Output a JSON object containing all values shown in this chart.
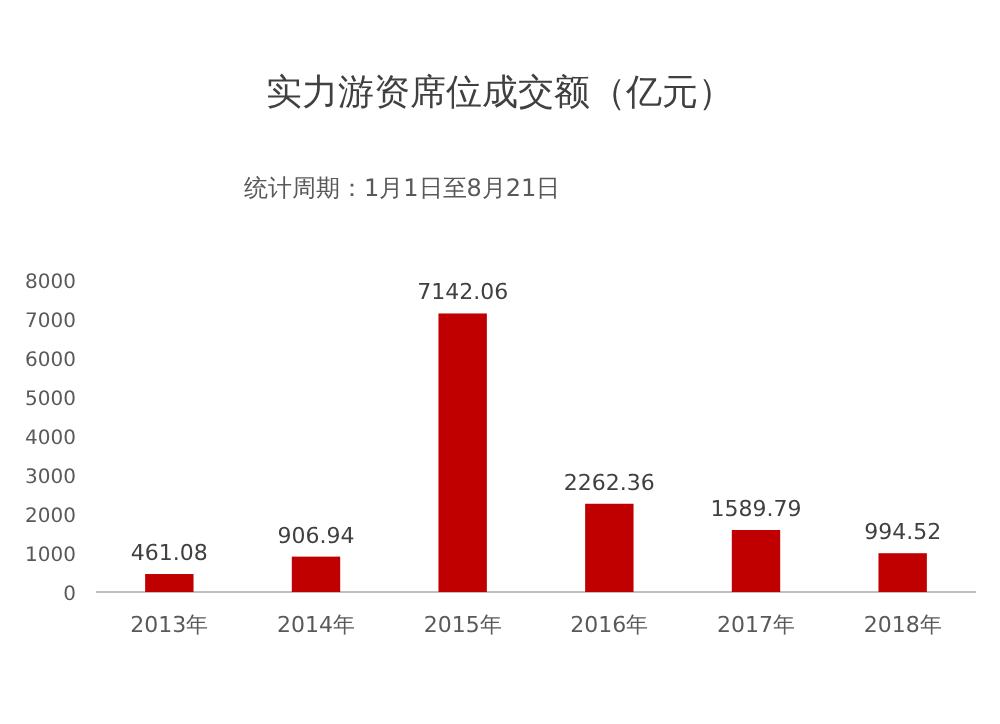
{
  "chart_data": {
    "type": "bar",
    "title": "实力游资席位成交额（亿元）",
    "annotations": [
      "统计周期：1月1日至8月21日"
    ],
    "categories": [
      "2013年",
      "2014年",
      "2015年",
      "2016年",
      "2017年",
      "2018年"
    ],
    "values": [
      461.08,
      906.94,
      7142.06,
      2262.36,
      1589.79,
      994.52
    ],
    "color": "#c00000",
    "ylim": [
      0,
      8000
    ],
    "yticks": [
      0,
      1000,
      2000,
      3000,
      4000,
      5000,
      6000,
      7000,
      8000
    ],
    "data_labels": true
  }
}
